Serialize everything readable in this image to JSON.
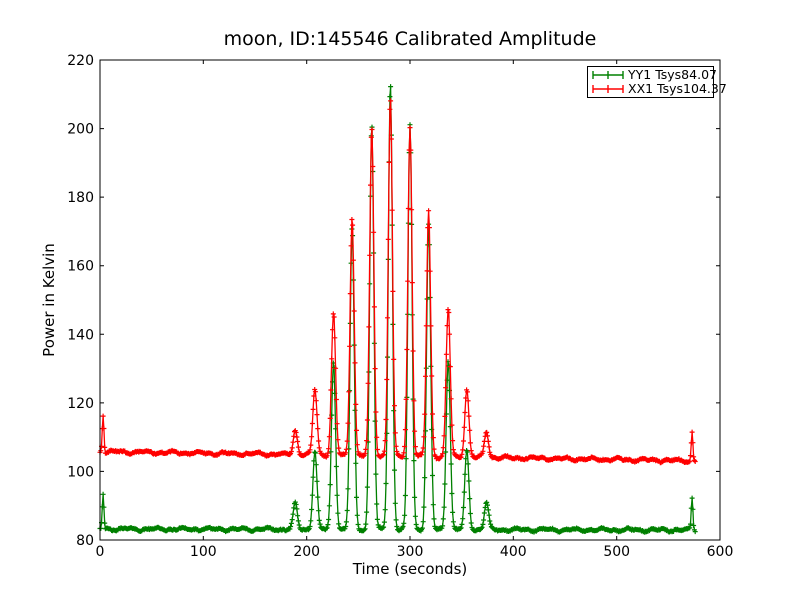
{
  "window": {
    "background": "#ffffff",
    "frame_color": "#000000"
  },
  "chart_data": {
    "type": "line",
    "title": "moon, ID:145546 Calibrated Amplitude",
    "xlabel": "Time (seconds)",
    "ylabel": "Power in Kelvin",
    "xlim": [
      0,
      600
    ],
    "ylim": [
      80,
      220
    ],
    "xticks": [
      0,
      100,
      200,
      300,
      400,
      500,
      600
    ],
    "yticks": [
      80,
      100,
      120,
      140,
      160,
      180,
      200,
      220
    ],
    "grid": false,
    "marker": "+",
    "legend_position": "upper right",
    "sample_step": 0.75,
    "t_end": 576,
    "legend": [
      {
        "label": "YY1 Tsys84.07",
        "color": "#008000"
      },
      {
        "label": "XX1 Tsys104.37",
        "color": "#ff0000"
      }
    ],
    "series": [
      {
        "name": "YY1 Tsys84.07",
        "color": "#008000",
        "baseline": {
          "start": 83.2,
          "end": 82.9,
          "wave": 0.3,
          "jitter": 0.4,
          "phase": 1.7
        },
        "peak_sigma": 2.0,
        "edge_spikes": [
          {
            "t": 3,
            "v": 93.4,
            "sigma": 0.8
          },
          {
            "t": 573,
            "v": 92.4,
            "sigma": 0.8
          }
        ],
        "peaks": [
          {
            "t": 189,
            "v": 90.5
          },
          {
            "t": 208,
            "v": 106
          },
          {
            "t": 226,
            "v": 132
          },
          {
            "t": 244,
            "v": 171
          },
          {
            "t": 263,
            "v": 201.5
          },
          {
            "t": 281,
            "v": 213.5
          },
          {
            "t": 300,
            "v": 201
          },
          {
            "t": 318,
            "v": 172
          },
          {
            "t": 337,
            "v": 133
          },
          {
            "t": 355,
            "v": 106
          },
          {
            "t": 374,
            "v": 91
          }
        ]
      },
      {
        "name": "XX1 Tsys104.37",
        "color": "#ff0000",
        "baseline": {
          "start": 105.8,
          "end": 103.1,
          "wave": 0.3,
          "jitter": 0.4,
          "phase": 4.2
        },
        "peak_sigma": 2.0,
        "edge_spikes": [
          {
            "t": 3,
            "v": 116.7,
            "sigma": 0.8
          },
          {
            "t": 573,
            "v": 111.4,
            "sigma": 0.8
          }
        ],
        "peaks": [
          {
            "t": 189,
            "v": 112
          },
          {
            "t": 208,
            "v": 124
          },
          {
            "t": 226,
            "v": 146
          },
          {
            "t": 244,
            "v": 174.5
          },
          {
            "t": 263,
            "v": 200
          },
          {
            "t": 281,
            "v": 209
          },
          {
            "t": 300,
            "v": 200.5
          },
          {
            "t": 318,
            "v": 176
          },
          {
            "t": 337,
            "v": 147.5
          },
          {
            "t": 355,
            "v": 124
          },
          {
            "t": 374,
            "v": 111.5
          }
        ]
      }
    ]
  }
}
